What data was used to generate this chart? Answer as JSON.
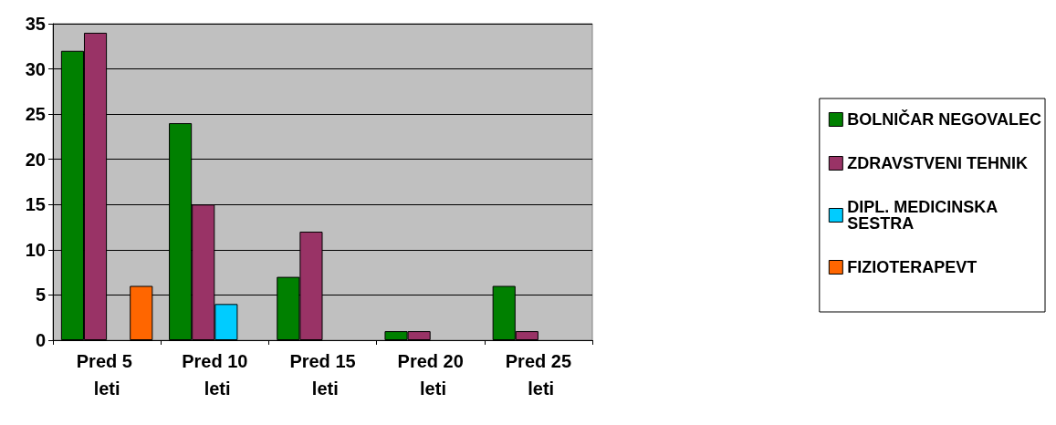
{
  "chart_data": {
    "type": "bar",
    "categories": [
      "Pred 5 leti",
      "Pred 10 leti",
      "Pred 15 leti",
      "Pred 20 leti",
      "Pred 25 leti"
    ],
    "series": [
      {
        "name": "BOLNIČAR NEGOVALEC",
        "color": "#008000",
        "values": [
          32,
          24,
          7,
          1,
          6
        ]
      },
      {
        "name": "ZDRAVSTVENI TEHNIK",
        "color": "#993366",
        "values": [
          34,
          15,
          12,
          1,
          1
        ]
      },
      {
        "name": "DIPL. MEDICINSKA SESTRA",
        "color": "#00ccff",
        "values": [
          0,
          4,
          0,
          0,
          0
        ]
      },
      {
        "name": "FIZIOTERAPEVT",
        "color": "#ff6600",
        "values": [
          6,
          0,
          0,
          0,
          0
        ]
      }
    ],
    "ylim": [
      0,
      35
    ],
    "yticks": [
      0,
      5,
      10,
      15,
      20,
      25,
      30,
      35
    ],
    "grid": "y",
    "legend": "right"
  }
}
